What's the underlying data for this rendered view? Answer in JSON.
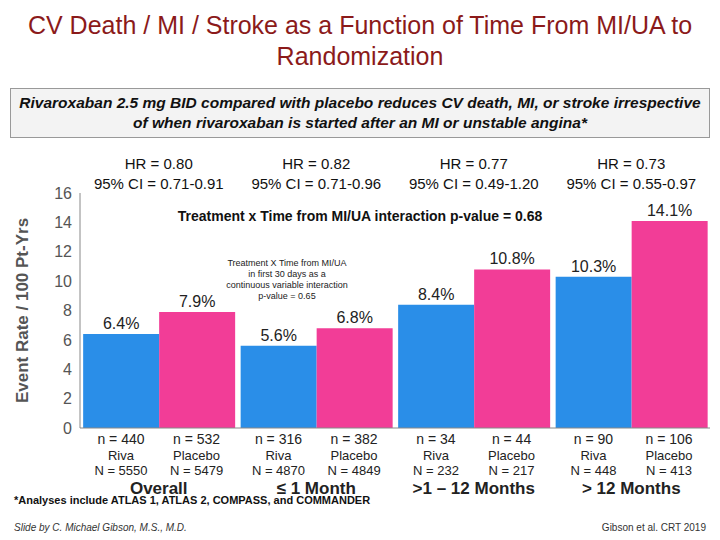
{
  "chart_data": {
    "type": "bar",
    "title": "CV Death / MI / Stroke as a Function of Time From MI/UA to Randomization",
    "subtitle": "Rivaroxaban 2.5 mg BID compared with placebo reduces CV death, MI, or stroke irrespective of when rivaroxaban is started after an MI or unstable angina*",
    "y_label": "Event Rate / 100 Pt-Yrs",
    "categories": [
      "Overall",
      "≤ 1 Month",
      ">1 – 12 Months",
      "> 12 Months"
    ],
    "series": [
      {
        "name": "Riva",
        "color": "#2a8ee8",
        "values": [
          6.4,
          5.6,
          8.4,
          10.3
        ],
        "value_labels": [
          "6.4%",
          "5.6%",
          "8.4%",
          "10.3%"
        ],
        "n_labels": [
          "n = 440",
          "n = 316",
          "n = 34",
          "n = 90"
        ],
        "N_labels": [
          "N = 5550",
          "N = 4870",
          "N = 232",
          "N = 448"
        ]
      },
      {
        "name": "Placebo",
        "color": "#f23d97",
        "values": [
          7.9,
          6.8,
          10.8,
          14.1
        ],
        "value_labels": [
          "7.9%",
          "6.8%",
          "10.8%",
          "14.1%"
        ],
        "n_labels": [
          "n = 532",
          "n = 382",
          "n = 44",
          "n = 106"
        ],
        "N_labels": [
          "N = 5479",
          "N = 4849",
          "N = 217",
          "N = 413"
        ]
      }
    ],
    "hazard_ratios": [
      {
        "hr": "HR = 0.80",
        "ci": "95% CI = 0.71-0.91"
      },
      {
        "hr": "HR = 0.82",
        "ci": "95% CI = 0.71-0.96"
      },
      {
        "hr": "HR = 0.77",
        "ci": "95% CI = 0.49-1.20"
      },
      {
        "hr": "HR = 0.73",
        "ci": "95% CI = 0.55-0.97"
      }
    ],
    "annotations": [
      "Treatment x Time from MI/UA interaction p-value = 0.68",
      "Treatment X Time from MI/UA in first 30 days as a continuous variable interaction p-value = 0.65"
    ],
    "footnote": "*Analyses include ATLAS 1, ATLAS 2, COMPASS, and COMMANDER",
    "credit": "Slide by C. Michael Gibson, M.S., M.D.",
    "source": "Gibson et al. CRT 2019",
    "ylim": [
      0,
      16
    ],
    "yticks": [
      0,
      2,
      4,
      6,
      8,
      10,
      12,
      14,
      16
    ],
    "grid": false,
    "data_labels": true
  }
}
